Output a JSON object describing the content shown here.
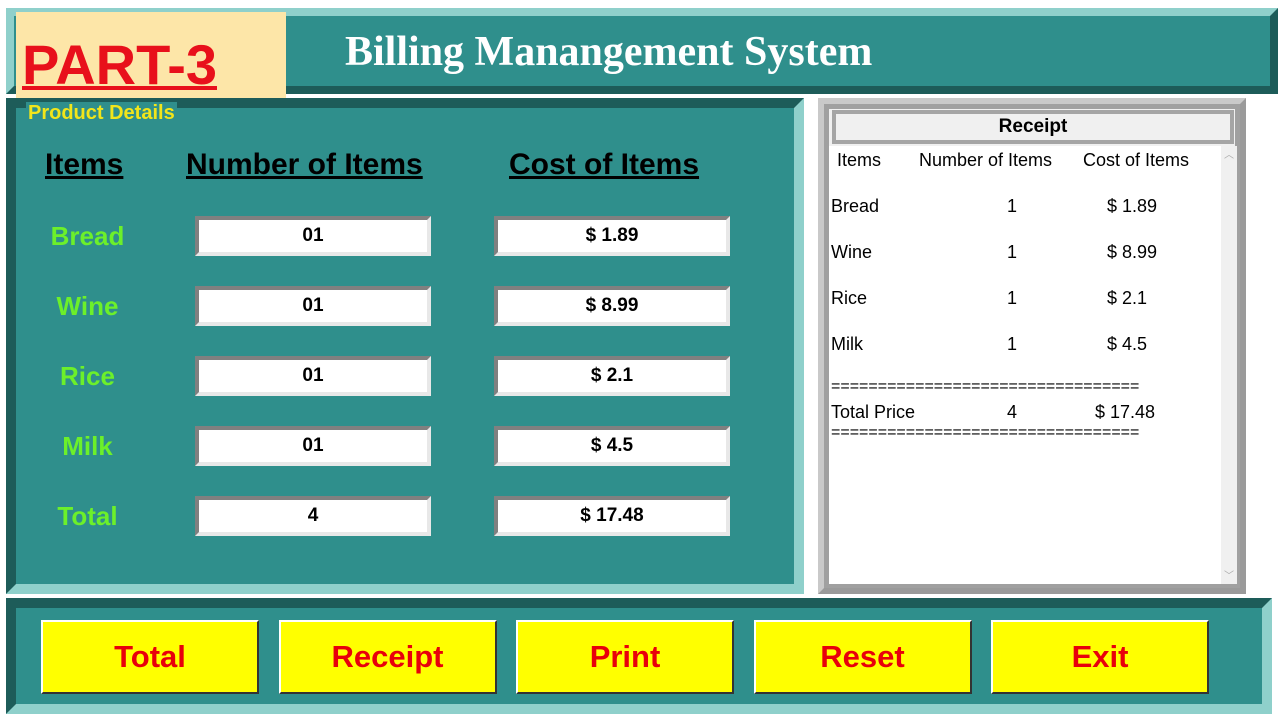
{
  "banner": "PART-3",
  "title": "Billing Manangement System",
  "product_details": {
    "legend": "Product Details",
    "headers": [
      "Items",
      "Number of Items",
      "Cost of Items"
    ],
    "rows": [
      {
        "item": "Bread",
        "count": "01",
        "cost": "$ 1.89"
      },
      {
        "item": "Wine",
        "count": "01",
        "cost": "$ 8.99"
      },
      {
        "item": "Rice",
        "count": "01",
        "cost": "$ 2.1"
      },
      {
        "item": "Milk",
        "count": "01",
        "cost": "$ 4.5"
      },
      {
        "item": "Total",
        "count": "4",
        "cost": "$ 17.48"
      }
    ]
  },
  "receipt": {
    "title": "Receipt",
    "headers": [
      "Items",
      "Number of Items",
      "Cost of Items"
    ],
    "rows": [
      {
        "item": "Bread",
        "count": "1",
        "cost": "$ 1.89"
      },
      {
        "item": "Wine",
        "count": "1",
        "cost": "$ 8.99"
      },
      {
        "item": "Rice",
        "count": "1",
        "cost": "$ 2.1"
      },
      {
        "item": "Milk",
        "count": "1",
        "cost": "$ 4.5"
      }
    ],
    "separator": "=================================",
    "total": {
      "label": "Total Price",
      "count": "4",
      "cost": "$ 17.48"
    }
  },
  "buttons": [
    "Total",
    "Receipt",
    "Print",
    "Reset",
    "Exit"
  ],
  "colors": {
    "panel": "#2f8f8c",
    "button": "#ffff00",
    "button_text": "#e8000b",
    "item_label": "#6cf02a",
    "legend": "#f2e51a"
  }
}
